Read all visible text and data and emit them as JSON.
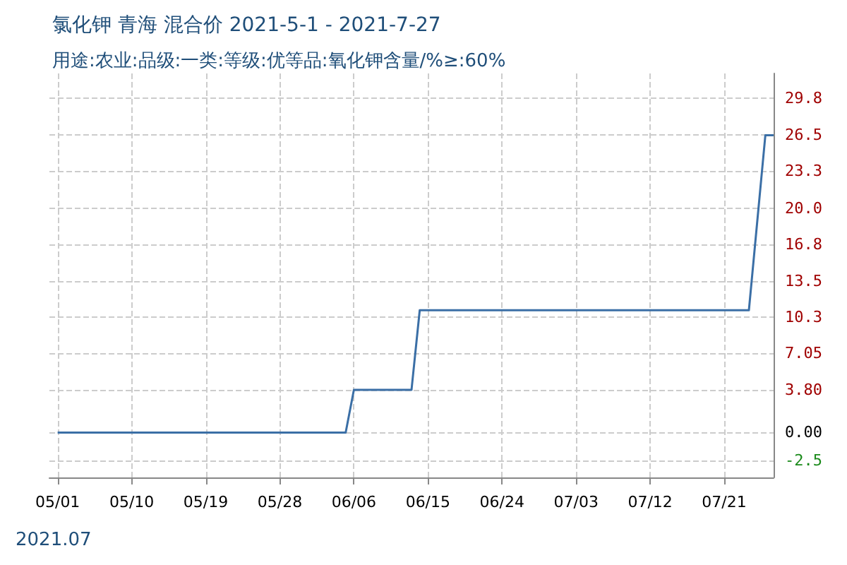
{
  "chart_data": {
    "type": "line",
    "title": "氯化钾 青海 混合价 2021-5-1 - 2021-7-27",
    "subtitle": "用途:农业:品级:一类:等级:优等品:氧化钾含量/%≥:60%",
    "annotations": [
      "2021.07"
    ],
    "x": [
      "2021-05-01",
      "2021-06-05",
      "2021-06-06",
      "2021-06-13",
      "2021-06-14",
      "2021-07-24",
      "2021-07-26",
      "2021-07-27"
    ],
    "series": [
      {
        "color": "#3b6fa6",
        "values": [
          0,
          0,
          3.8,
          3.8,
          10.9,
          10.9,
          26.5,
          26.5
        ]
      }
    ],
    "xlim": [
      "2021-04-30",
      "2021-07-27"
    ],
    "xticks": [
      {
        "value": "2021-05-01",
        "label": "05/01"
      },
      {
        "value": "2021-05-10",
        "label": "05/10"
      },
      {
        "value": "2021-05-19",
        "label": "05/19"
      },
      {
        "value": "2021-05-28",
        "label": "05/28"
      },
      {
        "value": "2021-06-06",
        "label": "06/06"
      },
      {
        "value": "2021-06-15",
        "label": "06/15"
      },
      {
        "value": "2021-06-24",
        "label": "06/24"
      },
      {
        "value": "2021-07-03",
        "label": "07/03"
      },
      {
        "value": "2021-07-12",
        "label": "07/12"
      },
      {
        "value": "2021-07-21",
        "label": "07/21"
      }
    ],
    "ylim": [
      -4,
      32
    ],
    "yticks": [
      -2.5,
      {
        "value": 0,
        "label": "0.00"
      },
      {
        "value": 3.8,
        "label": "3.80"
      },
      7.05,
      10.3,
      13.5,
      16.8,
      {
        "value": 20,
        "label": "20.0"
      },
      23.3,
      26.5,
      29.8
    ],
    "grid": true,
    "marker": "none",
    "line_style": "solid"
  }
}
